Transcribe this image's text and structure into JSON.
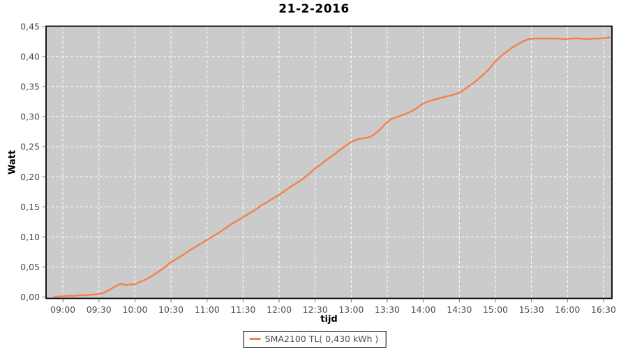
{
  "colors": {
    "page_background": "#ffffff",
    "plot_background": "#cbcbcb",
    "gridline": "#ffffff",
    "plot_border": "#000000",
    "series_line": "#f4814a",
    "tick_text": "#4c4c4c",
    "tick_mark": "#6b6b6b",
    "label_text": "#000000",
    "legend_border": "#000000",
    "legend_background": "#ffffff"
  },
  "chart_data": {
    "type": "line",
    "title": "21-2-2016",
    "xlabel": "tijd",
    "ylabel": "Watt",
    "legend_label": "SMA2100 TL( 0,430 kWh )",
    "legend_position": "bottom",
    "grid": true,
    "ylim": [
      0,
      0.45
    ],
    "x_range_minutes": [
      -14,
      457
    ],
    "x_ticks": [
      {
        "m": 0,
        "label": "09:00"
      },
      {
        "m": 30,
        "label": "09:30"
      },
      {
        "m": 60,
        "label": "10:00"
      },
      {
        "m": 90,
        "label": "10:30"
      },
      {
        "m": 120,
        "label": "11:00"
      },
      {
        "m": 150,
        "label": "11:30"
      },
      {
        "m": 180,
        "label": "12:00"
      },
      {
        "m": 210,
        "label": "12:30"
      },
      {
        "m": 240,
        "label": "13:00"
      },
      {
        "m": 270,
        "label": "13:30"
      },
      {
        "m": 300,
        "label": "14:00"
      },
      {
        "m": 330,
        "label": "14:30"
      },
      {
        "m": 360,
        "label": "15:00"
      },
      {
        "m": 390,
        "label": "15:30"
      },
      {
        "m": 420,
        "label": "16:00"
      },
      {
        "m": 450,
        "label": "16:30"
      }
    ],
    "y_ticks": [
      {
        "v": 0.0,
        "label": "0,00"
      },
      {
        "v": 0.05,
        "label": "0,05"
      },
      {
        "v": 0.1,
        "label": "0,10"
      },
      {
        "v": 0.15,
        "label": "0,15"
      },
      {
        "v": 0.2,
        "label": "0,20"
      },
      {
        "v": 0.25,
        "label": "0,25"
      },
      {
        "v": 0.3,
        "label": "0,30"
      },
      {
        "v": 0.35,
        "label": "0,35"
      },
      {
        "v": 0.4,
        "label": "0,40"
      },
      {
        "v": 0.45,
        "label": "0,45"
      }
    ],
    "series": [
      {
        "name": "SMA2100 TL",
        "total_kwh_label": "0,430 kWh",
        "color": "#f4814a",
        "points": [
          [
            -7,
            0.0
          ],
          [
            -3,
            0.001
          ],
          [
            0,
            0.001
          ],
          [
            5,
            0.002
          ],
          [
            10,
            0.002
          ],
          [
            15,
            0.003
          ],
          [
            20,
            0.003
          ],
          [
            25,
            0.004
          ],
          [
            30,
            0.005
          ],
          [
            34,
            0.007
          ],
          [
            38,
            0.011
          ],
          [
            42,
            0.016
          ],
          [
            45,
            0.019
          ],
          [
            47,
            0.021
          ],
          [
            49,
            0.022
          ],
          [
            52,
            0.02
          ],
          [
            56,
            0.021
          ],
          [
            60,
            0.021
          ],
          [
            64,
            0.025
          ],
          [
            70,
            0.03
          ],
          [
            75,
            0.036
          ],
          [
            80,
            0.043
          ],
          [
            85,
            0.05
          ],
          [
            90,
            0.058
          ],
          [
            95,
            0.064
          ],
          [
            100,
            0.07
          ],
          [
            105,
            0.077
          ],
          [
            110,
            0.083
          ],
          [
            115,
            0.089
          ],
          [
            120,
            0.095
          ],
          [
            125,
            0.101
          ],
          [
            130,
            0.107
          ],
          [
            135,
            0.114
          ],
          [
            140,
            0.121
          ],
          [
            145,
            0.127
          ],
          [
            150,
            0.133
          ],
          [
            155,
            0.139
          ],
          [
            160,
            0.145
          ],
          [
            165,
            0.152
          ],
          [
            170,
            0.158
          ],
          [
            175,
            0.164
          ],
          [
            180,
            0.17
          ],
          [
            185,
            0.177
          ],
          [
            190,
            0.184
          ],
          [
            195,
            0.19
          ],
          [
            200,
            0.197
          ],
          [
            205,
            0.205
          ],
          [
            210,
            0.214
          ],
          [
            215,
            0.221
          ],
          [
            220,
            0.229
          ],
          [
            225,
            0.236
          ],
          [
            230,
            0.244
          ],
          [
            235,
            0.251
          ],
          [
            240,
            0.258
          ],
          [
            245,
            0.262
          ],
          [
            250,
            0.264
          ],
          [
            255,
            0.266
          ],
          [
            258,
            0.269
          ],
          [
            262,
            0.275
          ],
          [
            266,
            0.283
          ],
          [
            270,
            0.291
          ],
          [
            273,
            0.296
          ],
          [
            277,
            0.299
          ],
          [
            283,
            0.303
          ],
          [
            288,
            0.307
          ],
          [
            293,
            0.312
          ],
          [
            297,
            0.318
          ],
          [
            300,
            0.322
          ],
          [
            305,
            0.326
          ],
          [
            312,
            0.33
          ],
          [
            318,
            0.333
          ],
          [
            324,
            0.336
          ],
          [
            330,
            0.34
          ],
          [
            334,
            0.345
          ],
          [
            338,
            0.351
          ],
          [
            343,
            0.358
          ],
          [
            347,
            0.365
          ],
          [
            351,
            0.372
          ],
          [
            355,
            0.38
          ],
          [
            359,
            0.39
          ],
          [
            362,
            0.396
          ],
          [
            366,
            0.403
          ],
          [
            370,
            0.409
          ],
          [
            374,
            0.415
          ],
          [
            378,
            0.42
          ],
          [
            382,
            0.424
          ],
          [
            385,
            0.427
          ],
          [
            388,
            0.429
          ],
          [
            391,
            0.43
          ],
          [
            398,
            0.43
          ],
          [
            406,
            0.43
          ],
          [
            412,
            0.43
          ],
          [
            418,
            0.429
          ],
          [
            424,
            0.43
          ],
          [
            430,
            0.43
          ],
          [
            436,
            0.429
          ],
          [
            442,
            0.43
          ],
          [
            447,
            0.43
          ],
          [
            451,
            0.431
          ],
          [
            455,
            0.432
          ]
        ]
      }
    ]
  }
}
